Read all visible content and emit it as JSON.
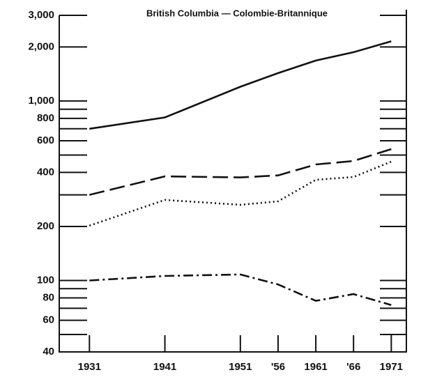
{
  "chart_data": {
    "type": "line",
    "title": "British Columbia — Colombie-Britannique",
    "x": [
      1931,
      1941,
      1951,
      1956,
      1961,
      1966,
      1971
    ],
    "xlim": [
      1927,
      1973
    ],
    "xticks": [
      1931,
      1941,
      1951,
      {
        "value": 1956,
        "label": "'56"
      },
      1961,
      {
        "value": 1966,
        "label": "'66"
      },
      1971
    ],
    "ylim": [
      40,
      3000
    ],
    "log_y": true,
    "yticks": [
      40,
      60,
      80,
      100,
      200,
      400,
      600,
      800,
      {
        "value": 1000,
        "label": "1,000"
      },
      {
        "value": 2000,
        "label": "2,000"
      },
      {
        "value": 3000,
        "label": "3,000"
      }
    ],
    "yminor": [
      50,
      70,
      90,
      300,
      500,
      700,
      900
    ],
    "series": [
      {
        "color": "#111111",
        "dash": "solid",
        "values": [
          700,
          810,
          1200,
          1430,
          1680,
          1870,
          2150
        ]
      },
      {
        "color": "#111111",
        "dash": "dashed",
        "values": [
          300,
          380,
          375,
          385,
          443,
          463,
          539
        ]
      },
      {
        "color": "#111111",
        "dash": "dotted",
        "values": [
          202,
          281,
          264,
          276,
          364,
          377,
          459
        ]
      },
      {
        "color": "#111111",
        "dash": "dashdot",
        "values": [
          100,
          106,
          108,
          95,
          77,
          84,
          73
        ]
      }
    ]
  }
}
